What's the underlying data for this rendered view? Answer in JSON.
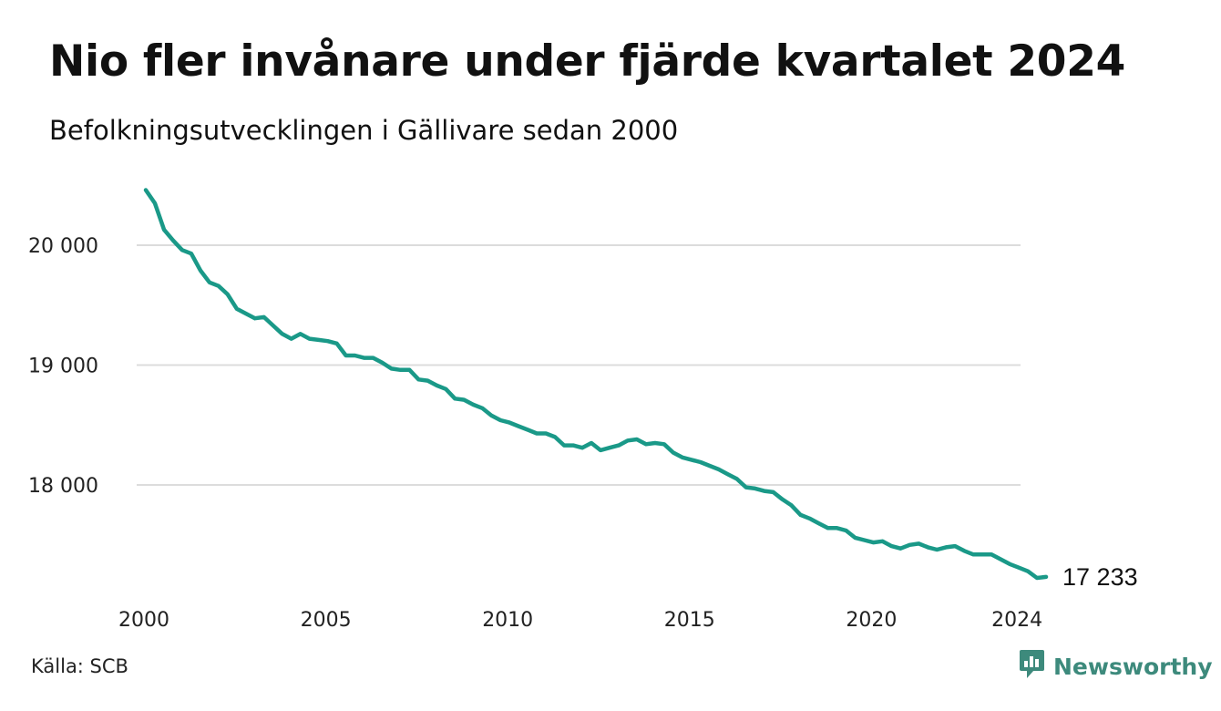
{
  "chart_data": {
    "type": "line",
    "title": "Nio fler invånare under fjärde kvartalet 2024",
    "subtitle": "Befolkningsutvecklingen i Gällivare sedan 2000",
    "xlabel": "",
    "ylabel": "",
    "x_ticks": [
      "2000",
      "2005",
      "2010",
      "2015",
      "2020",
      "2024"
    ],
    "y_ticks": [
      "18 000",
      "19 000",
      "20 000"
    ],
    "ylim": [
      17150,
      20550
    ],
    "xlim": [
      2000,
      2025
    ],
    "grid": true,
    "end_label": "17 233",
    "series": [
      {
        "color": "#1a9988",
        "points": [
          [
            2000.0,
            20460
          ],
          [
            2000.25,
            20350
          ],
          [
            2000.5,
            20130
          ],
          [
            2000.75,
            20040
          ],
          [
            2001.0,
            19960
          ],
          [
            2001.25,
            19930
          ],
          [
            2001.5,
            19790
          ],
          [
            2001.75,
            19690
          ],
          [
            2002.0,
            19660
          ],
          [
            2002.25,
            19590
          ],
          [
            2002.5,
            19470
          ],
          [
            2002.75,
            19430
          ],
          [
            2003.0,
            19390
          ],
          [
            2003.25,
            19400
          ],
          [
            2003.5,
            19330
          ],
          [
            2003.75,
            19260
          ],
          [
            2004.0,
            19220
          ],
          [
            2004.25,
            19260
          ],
          [
            2004.5,
            19220
          ],
          [
            2004.75,
            19210
          ],
          [
            2005.0,
            19200
          ],
          [
            2005.25,
            19180
          ],
          [
            2005.5,
            19080
          ],
          [
            2005.75,
            19080
          ],
          [
            2006.0,
            19060
          ],
          [
            2006.25,
            19060
          ],
          [
            2006.5,
            19020
          ],
          [
            2006.75,
            18970
          ],
          [
            2007.0,
            18960
          ],
          [
            2007.25,
            18960
          ],
          [
            2007.5,
            18880
          ],
          [
            2007.75,
            18870
          ],
          [
            2008.0,
            18830
          ],
          [
            2008.25,
            18800
          ],
          [
            2008.5,
            18720
          ],
          [
            2008.75,
            18710
          ],
          [
            2009.0,
            18670
          ],
          [
            2009.25,
            18640
          ],
          [
            2009.5,
            18580
          ],
          [
            2009.75,
            18540
          ],
          [
            2010.0,
            18520
          ],
          [
            2010.25,
            18490
          ],
          [
            2010.5,
            18460
          ],
          [
            2010.75,
            18430
          ],
          [
            2011.0,
            18430
          ],
          [
            2011.25,
            18400
          ],
          [
            2011.5,
            18330
          ],
          [
            2011.75,
            18330
          ],
          [
            2012.0,
            18310
          ],
          [
            2012.25,
            18350
          ],
          [
            2012.5,
            18290
          ],
          [
            2012.75,
            18310
          ],
          [
            2013.0,
            18330
          ],
          [
            2013.25,
            18370
          ],
          [
            2013.5,
            18380
          ],
          [
            2013.75,
            18340
          ],
          [
            2014.0,
            18350
          ],
          [
            2014.25,
            18340
          ],
          [
            2014.5,
            18270
          ],
          [
            2014.75,
            18230
          ],
          [
            2015.0,
            18210
          ],
          [
            2015.25,
            18190
          ],
          [
            2015.5,
            18160
          ],
          [
            2015.75,
            18130
          ],
          [
            2016.0,
            18090
          ],
          [
            2016.25,
            18050
          ],
          [
            2016.5,
            17980
          ],
          [
            2016.75,
            17970
          ],
          [
            2017.0,
            17950
          ],
          [
            2017.25,
            17940
          ],
          [
            2017.5,
            17880
          ],
          [
            2017.75,
            17830
          ],
          [
            2018.0,
            17750
          ],
          [
            2018.25,
            17720
          ],
          [
            2018.5,
            17680
          ],
          [
            2018.75,
            17640
          ],
          [
            2019.0,
            17640
          ],
          [
            2019.25,
            17620
          ],
          [
            2019.5,
            17560
          ],
          [
            2019.75,
            17540
          ],
          [
            2020.0,
            17520
          ],
          [
            2020.25,
            17530
          ],
          [
            2020.5,
            17490
          ],
          [
            2020.75,
            17470
          ],
          [
            2021.0,
            17500
          ],
          [
            2021.25,
            17510
          ],
          [
            2021.5,
            17480
          ],
          [
            2021.75,
            17460
          ],
          [
            2022.0,
            17480
          ],
          [
            2022.25,
            17490
          ],
          [
            2022.5,
            17450
          ],
          [
            2022.75,
            17420
          ],
          [
            2023.0,
            17420
          ],
          [
            2023.25,
            17420
          ],
          [
            2023.5,
            17380
          ],
          [
            2023.75,
            17340
          ],
          [
            2024.0,
            17310
          ],
          [
            2024.25,
            17280
          ],
          [
            2024.5,
            17224
          ],
          [
            2024.75,
            17233
          ]
        ]
      }
    ]
  },
  "footer": {
    "source": "Källa: SCB",
    "brand": "Newsworthy",
    "brand_icon": "newsworthy-logo-icon",
    "brand_color": "#3d8a7c"
  }
}
